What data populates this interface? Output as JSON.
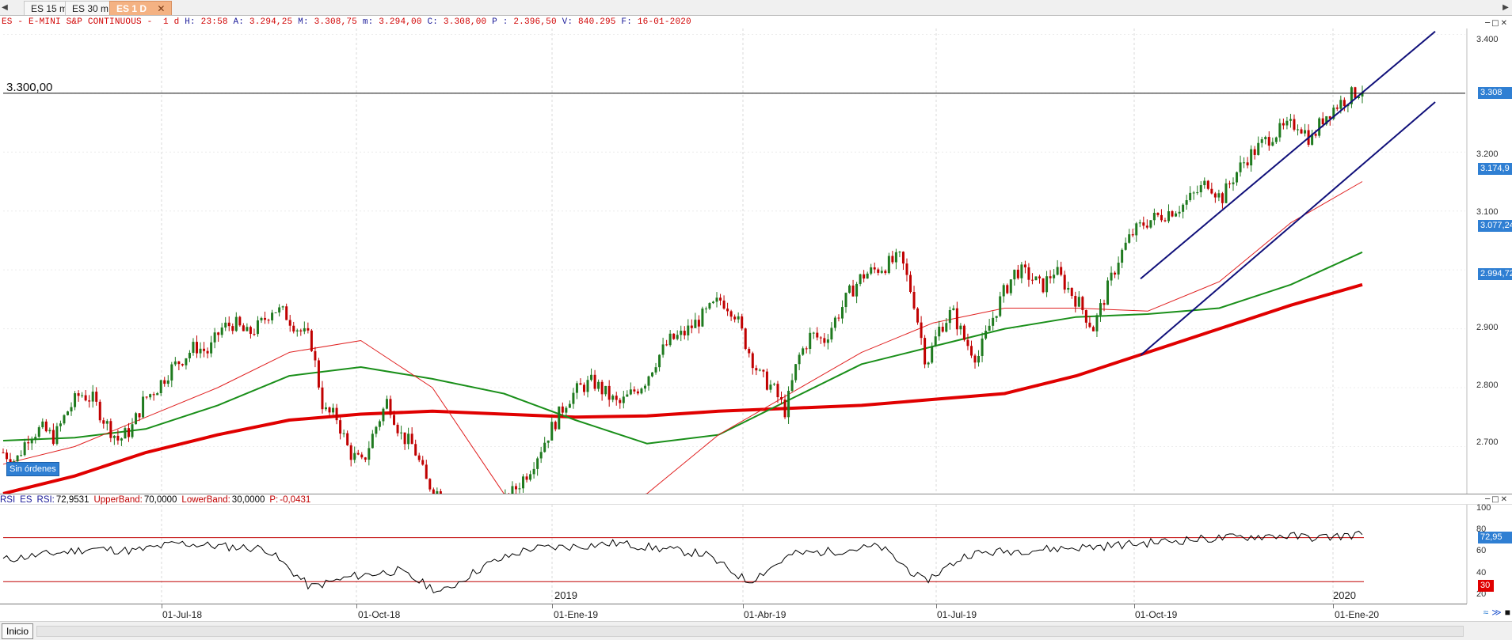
{
  "tabs": [
    {
      "label": "ES 15 m",
      "active": false
    },
    {
      "label": "ES 30 m",
      "active": false
    },
    {
      "label": "ES 1 D",
      "active": true
    }
  ],
  "icons": {
    "close": "close-icon",
    "nav_left": "arrow-left-icon",
    "nav_right": "arrow-right-icon"
  },
  "header": {
    "symbol": "ES - E-MINI S&P CONTINUOUS -  1 d",
    "h_label": "H:",
    "h_value": "23:58",
    "a_label": "A:",
    "a_value": "3.294,25",
    "m_label": "M:",
    "m_value": "3.308,75",
    "mm_label": "m:",
    "mm_value": "3.294,00",
    "c_label": "C:",
    "c_value": "3.308,00",
    "p_label": "P :",
    "p_value": "2.396,50",
    "v_label": "V:",
    "v_value": "840.295",
    "f_label": "F:",
    "f_value": "16-01-2020"
  },
  "reference_line": {
    "label": "3.300,00",
    "value": 3300
  },
  "orders_badge": "Sin órdenes",
  "price_axis": {
    "ticks": [
      "3.400",
      "3.200",
      "3.100",
      "2.900",
      "2.800",
      "2.700"
    ],
    "tags": [
      {
        "text": "3.308",
        "color": "#2f7fd3",
        "value": 3308
      },
      {
        "text": "3.174,9",
        "color": "#2f7fd3",
        "value": 3174.9
      },
      {
        "text": "3.077,24",
        "color": "#2f7fd3",
        "value": 3077.24
      },
      {
        "text": "2.994,72",
        "color": "#2f7fd3",
        "value": 2994.72
      }
    ]
  },
  "rsi": {
    "name": "RSI",
    "symbol": "ES",
    "label": "RSI:",
    "value": "72,9531",
    "upper_label": "UpperBand:",
    "upper_value": "70,0000",
    "lower_label": "LowerBand:",
    "lower_value": "30,0000",
    "p_label": "P:",
    "p_value": "-0,0431",
    "axis_ticks": [
      "100",
      "80",
      "60",
      "40",
      "20"
    ],
    "tag_value": "72,95",
    "tag_lower": "30",
    "year_2019": "2019",
    "year_2020": "2020"
  },
  "time_axis": [
    "01-Jul-18",
    "01-Oct-18",
    "01-Ene-19",
    "01-Abr-19",
    "01-Jul-19",
    "01-Oct-19",
    "01-Ene-20"
  ],
  "status_bar": {
    "start_label": "Inicio"
  },
  "colors": {
    "candle_up": "#1f7a1f",
    "candle_down": "#c00000",
    "ma_red_thick": "#e00000",
    "ma_green": "#1a8f1a",
    "ma_red_thin": "#e02020",
    "ma_blue": "#2040e0",
    "channel": "#10107a",
    "rsi_line": "#000000",
    "rsi_band": "#c00000",
    "tab_active": "#f4b283",
    "tag_blue": "#2f7fd3",
    "tag_red": "#e00000"
  },
  "chart_data": {
    "type": "candlestick",
    "title": "ES - E-MINI S&P CONTINUOUS -  1 d",
    "x_start": "2018-04",
    "x_end": "2020-01-16",
    "ylim": [
      2620,
      3410
    ],
    "grid": true,
    "close_series": [
      2690,
      2675,
      2720,
      2730,
      2715,
      2760,
      2790,
      2780,
      2740,
      2710,
      2730,
      2780,
      2800,
      2830,
      2850,
      2870,
      2860,
      2900,
      2910,
      2890,
      2905,
      2935,
      2925,
      2900,
      2880,
      2760,
      2750,
      2690,
      2670,
      2730,
      2780,
      2720,
      2700,
      2640,
      2620,
      2560,
      2500,
      2460,
      2520,
      2600,
      2630,
      2660,
      2700,
      2740,
      2780,
      2800,
      2810,
      2790,
      2770,
      2790,
      2810,
      2850,
      2880,
      2890,
      2910,
      2930,
      2950,
      2930,
      2870,
      2820,
      2800,
      2760,
      2850,
      2890,
      2880,
      2920,
      2960,
      2990,
      3000,
      3010,
      3020,
      2950,
      2840,
      2900,
      2930,
      2880,
      2850,
      2910,
      2960,
      3000,
      2990,
      2970,
      3000,
      2970,
      2940,
      2900,
      2960,
      3020,
      3060,
      3080,
      3090,
      3100,
      3110,
      3130,
      3150,
      3120,
      3160,
      3190,
      3210,
      3230,
      3240,
      3250,
      3220,
      3260,
      3280,
      3295,
      3308
    ],
    "series": [
      {
        "name": "ma_red_thick",
        "values": [
          2620,
          2650,
          2690,
          2720,
          2745,
          2755,
          2760,
          2755,
          2750,
          2752,
          2760,
          2765,
          2770,
          2780,
          2790,
          2820,
          2860,
          2900,
          2940,
          2975
        ]
      },
      {
        "name": "ma_green",
        "values": [
          2710,
          2715,
          2730,
          2770,
          2820,
          2835,
          2815,
          2790,
          2745,
          2705,
          2720,
          2780,
          2840,
          2870,
          2900,
          2920,
          2925,
          2935,
          2975,
          3030
        ]
      },
      {
        "name": "ma_red_thin",
        "values": [
          2670,
          2700,
          2750,
          2800,
          2860,
          2880,
          2800,
          2620,
          2590,
          2620,
          2720,
          2790,
          2860,
          2910,
          2935,
          2935,
          2930,
          2980,
          3080,
          3150
        ]
      },
      {
        "name": "rsi",
        "values": [
          50,
          55,
          60,
          58,
          65,
          62,
          60,
          25,
          35,
          40,
          20,
          45,
          60,
          62,
          65,
          60,
          55,
          30,
          55,
          58,
          62,
          30,
          55,
          58,
          60,
          62,
          65,
          68,
          70,
          72,
          70,
          73
        ]
      }
    ],
    "channel": {
      "upper": [
        {
          "x": "2019-10-01",
          "y": 2985
        },
        {
          "x": "2020-01-16",
          "y": 3405
        }
      ],
      "lower": [
        {
          "x": "2019-10-01",
          "y": 2855
        },
        {
          "x": "2020-01-16",
          "y": 3285
        }
      ]
    },
    "rsi_bands": {
      "upper": 70,
      "lower": 30,
      "ylim": [
        10,
        100
      ]
    }
  }
}
